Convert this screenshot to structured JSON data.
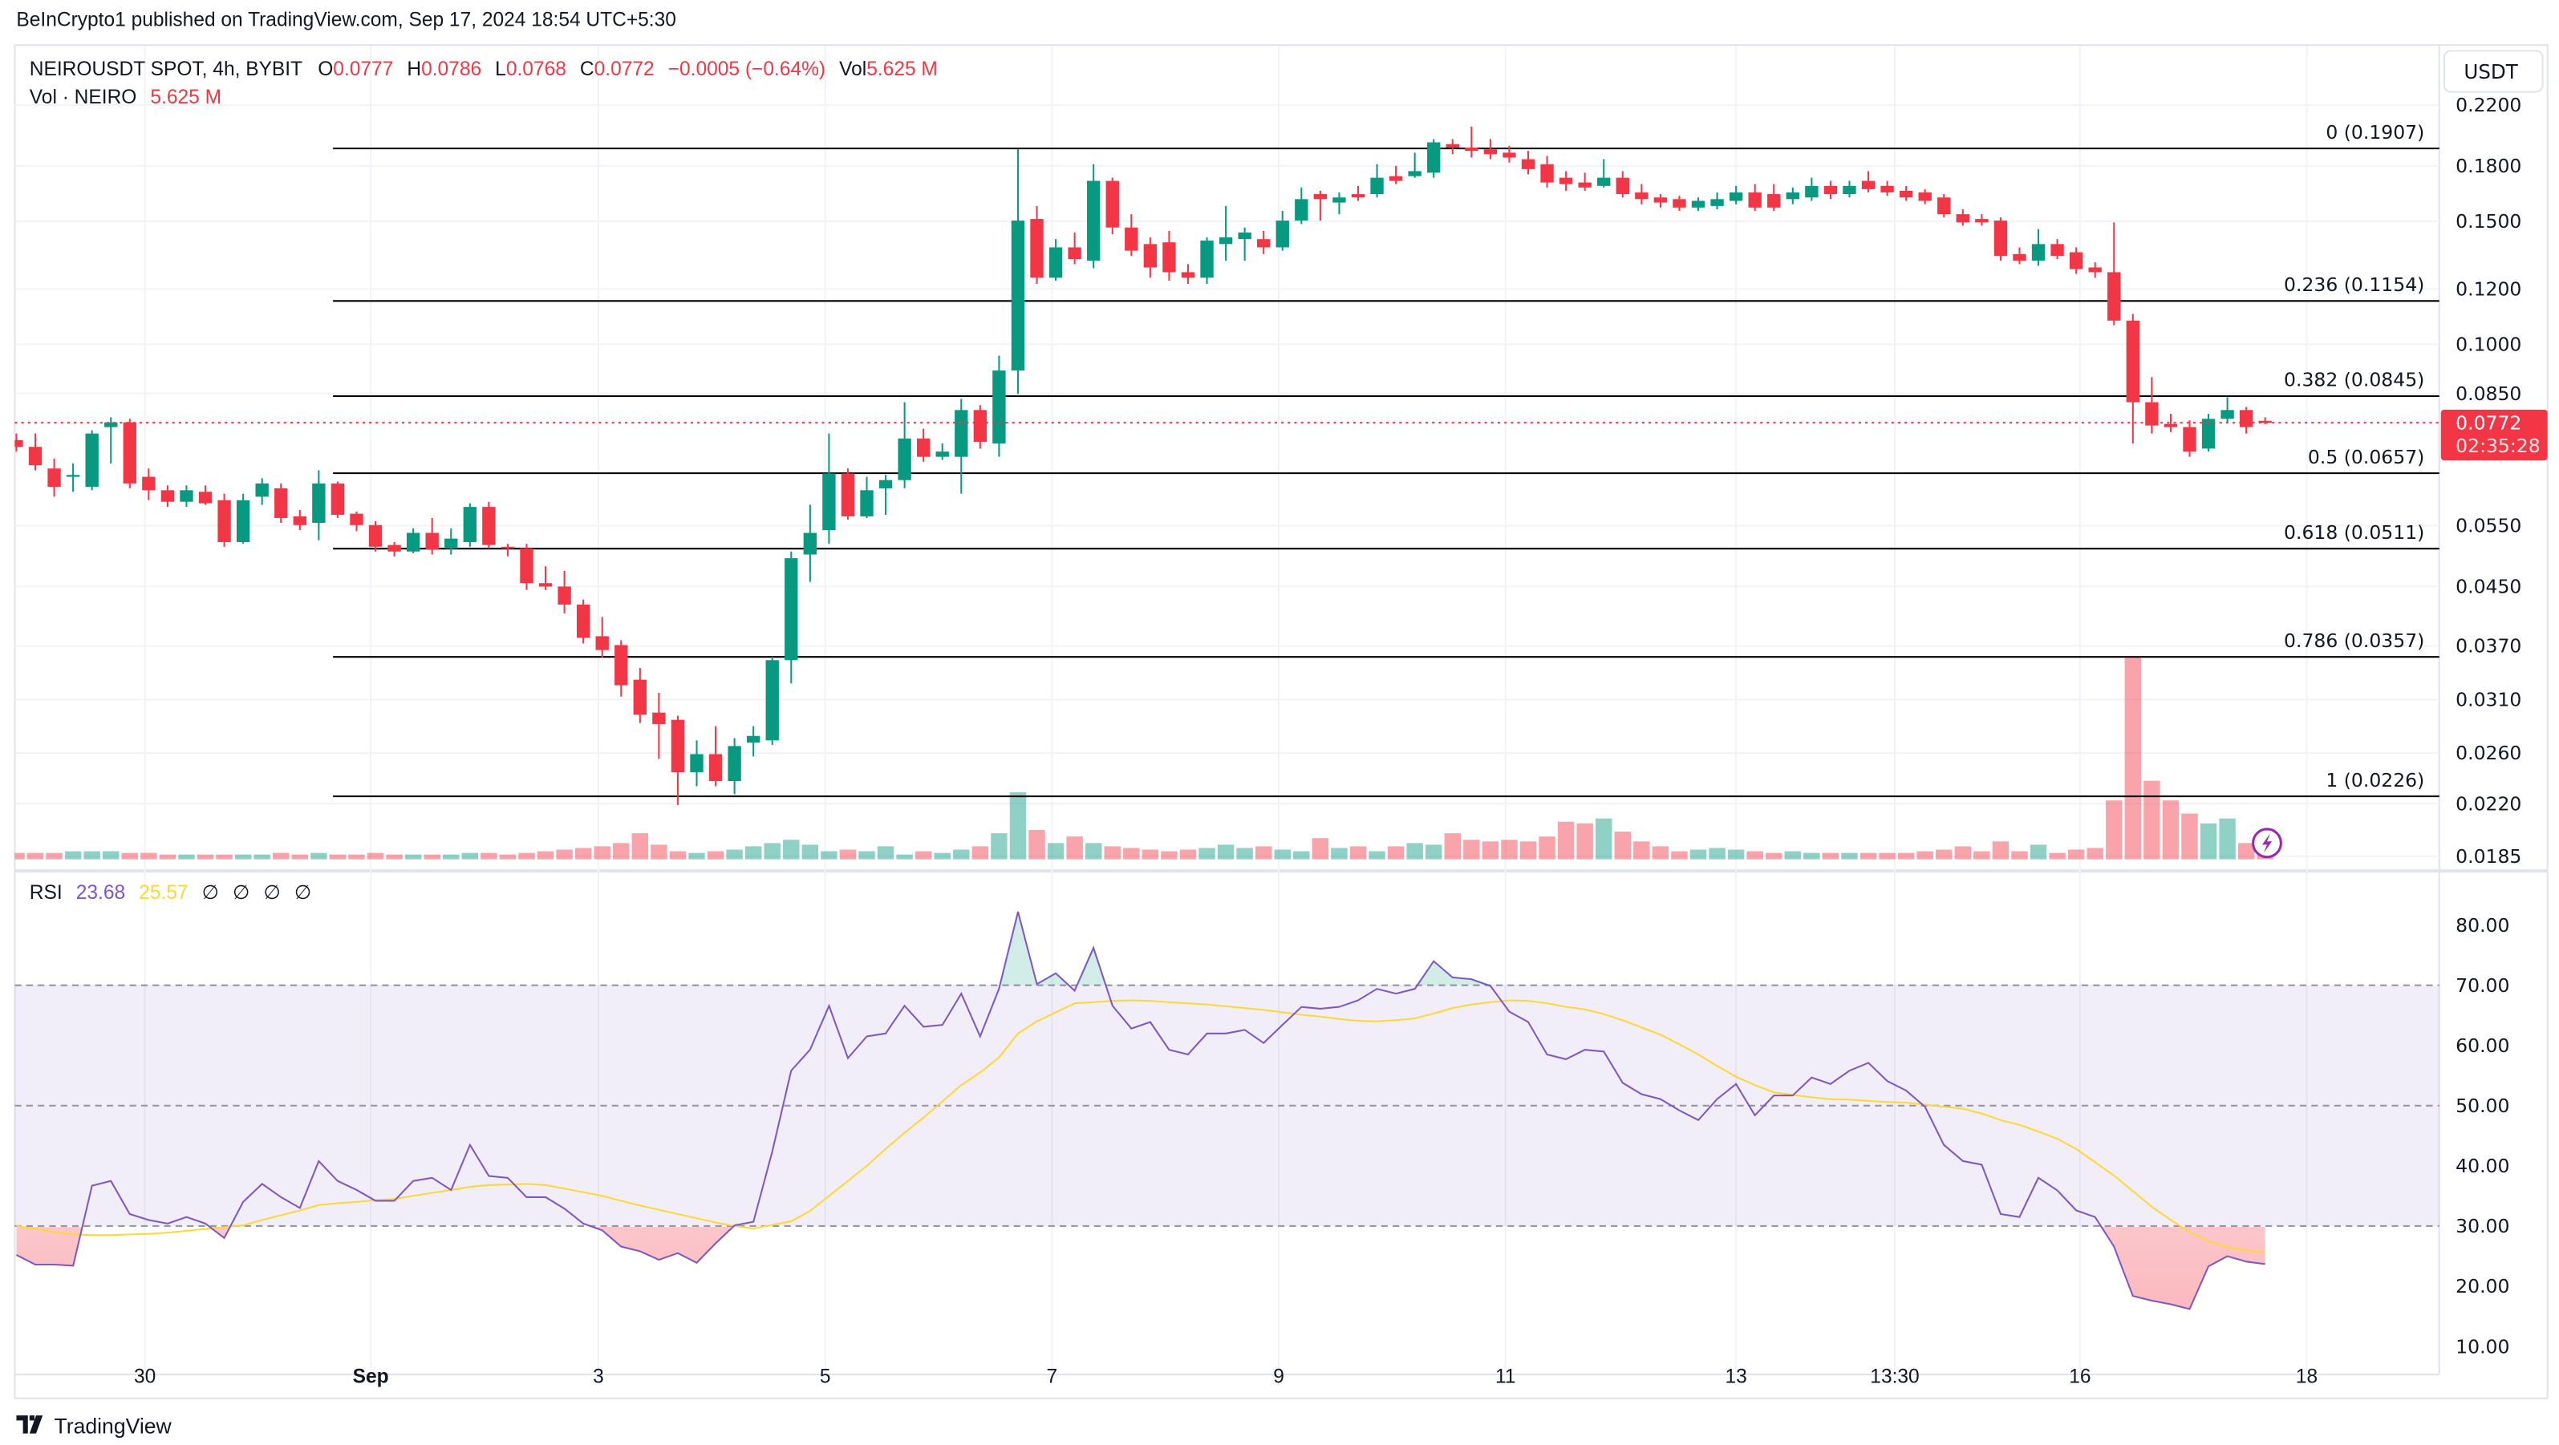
{
  "header": {
    "published": "BeInCrypto1 published on TradingView.com, Sep 17, 2024 18:54 UTC+5:30"
  },
  "legend": {
    "symbol": "NEIROUSDT SPOT, 4h, BYBIT",
    "o_label": "O",
    "o": "0.0777",
    "h_label": "H",
    "h": "0.0786",
    "l_label": "L",
    "l": "0.0768",
    "c_label": "C",
    "c": "0.0772",
    "change": "−0.0005 (−0.64%)",
    "vol_label": "Vol",
    "vol": "5.625 M",
    "vol_indicator_label": "Vol · NEIRO",
    "vol_indicator_value": "5.625 M"
  },
  "currency_button": "USDT",
  "last_price": {
    "price": "0.0772",
    "countdown": "02:35:28"
  },
  "rsi_legend": {
    "label": "RSI",
    "rsi": "23.68",
    "ma": "25.57",
    "hidden": [
      "∅",
      "∅",
      "∅",
      "∅"
    ]
  },
  "watermark": "TradingView",
  "colors": {
    "up": "#089981",
    "down": "#f23645",
    "rsi": "#7e57c2",
    "rsi_ma": "#fdd835",
    "fib": "#000000"
  },
  "chart_data": [
    {
      "type": "candlestick",
      "scale": "log",
      "ylim": [
        0.0185,
        0.22
      ],
      "y_ticks": [
        "0.2200",
        "0.1800",
        "0.1500",
        "0.1200",
        "0.1000",
        "0.0850",
        "0.0550",
        "0.0450",
        "0.0370",
        "0.0310",
        "0.0260",
        "0.0220",
        "0.0185"
      ],
      "x_ticks": [
        "30",
        "Sep",
        "3",
        "5",
        "7",
        "9",
        "11",
        "13",
        "13:30",
        "16",
        "18"
      ],
      "fib_levels": [
        {
          "label": "0 (0.1907)",
          "price": 0.1907
        },
        {
          "label": "0.236 (0.1154)",
          "price": 0.1154
        },
        {
          "label": "0.382 (0.0845)",
          "price": 0.0845
        },
        {
          "label": "0.5 (0.0657)",
          "price": 0.0657
        },
        {
          "label": "0.618 (0.0511)",
          "price": 0.0511
        },
        {
          "label": "0.786 (0.0357)",
          "price": 0.0357
        },
        {
          "label": "1 (0.0226)",
          "price": 0.0226
        }
      ],
      "candles_ohlc": [
        [
          0.0729,
          0.0745,
          0.0702,
          0.0713
        ],
        [
          0.0713,
          0.0745,
          0.066,
          0.0671
        ],
        [
          0.0664,
          0.0686,
          0.0605,
          0.0625
        ],
        [
          0.0646,
          0.0675,
          0.0615,
          0.065
        ],
        [
          0.0625,
          0.0753,
          0.0618,
          0.0745
        ],
        [
          0.0761,
          0.0786,
          0.0675,
          0.0773
        ],
        [
          0.0773,
          0.0782,
          0.0622,
          0.0632
        ],
        [
          0.0646,
          0.0664,
          0.0598,
          0.0618
        ],
        [
          0.0618,
          0.0628,
          0.0585,
          0.0595
        ],
        [
          0.0595,
          0.0628,
          0.0585,
          0.0618
        ],
        [
          0.0615,
          0.0628,
          0.0589,
          0.0592
        ],
        [
          0.0598,
          0.0611,
          0.0513,
          0.0521
        ],
        [
          0.0521,
          0.0611,
          0.0518,
          0.0598
        ],
        [
          0.0605,
          0.0643,
          0.0589,
          0.0632
        ],
        [
          0.0622,
          0.0632,
          0.0555,
          0.0564
        ],
        [
          0.0567,
          0.0579,
          0.0542,
          0.0551
        ],
        [
          0.0555,
          0.066,
          0.0524,
          0.0632
        ],
        [
          0.0632,
          0.0636,
          0.0564,
          0.057
        ],
        [
          0.0572,
          0.0576,
          0.054,
          0.0551
        ],
        [
          0.0551,
          0.0558,
          0.0505,
          0.0513
        ],
        [
          0.0516,
          0.0521,
          0.0497,
          0.0505
        ],
        [
          0.0505,
          0.0545,
          0.0502,
          0.0537
        ],
        [
          0.0537,
          0.0564,
          0.05,
          0.0508
        ],
        [
          0.051,
          0.0545,
          0.05,
          0.0527
        ],
        [
          0.0521,
          0.0592,
          0.0513,
          0.0585
        ],
        [
          0.0585,
          0.0595,
          0.051,
          0.0516
        ],
        [
          0.0513,
          0.0518,
          0.0497,
          0.051
        ],
        [
          0.051,
          0.0518,
          0.0445,
          0.0455
        ],
        [
          0.0455,
          0.0481,
          0.0445,
          0.045
        ],
        [
          0.045,
          0.0474,
          0.0412,
          0.0424
        ],
        [
          0.0424,
          0.0431,
          0.0373,
          0.038
        ],
        [
          0.0382,
          0.0407,
          0.0356,
          0.0365
        ],
        [
          0.0371,
          0.0377,
          0.0313,
          0.0325
        ],
        [
          0.0331,
          0.0344,
          0.0287,
          0.0295
        ],
        [
          0.0297,
          0.0317,
          0.0255,
          0.0286
        ],
        [
          0.029,
          0.0294,
          0.0219,
          0.0244
        ],
        [
          0.0244,
          0.0271,
          0.0233,
          0.0259
        ],
        [
          0.0259,
          0.0284,
          0.0233,
          0.0237
        ],
        [
          0.0237,
          0.0273,
          0.0227,
          0.0266
        ],
        [
          0.0269,
          0.0284,
          0.0257,
          0.0275
        ],
        [
          0.0271,
          0.0357,
          0.0267,
          0.0353
        ],
        [
          0.0353,
          0.0505,
          0.0327,
          0.0494
        ],
        [
          0.05,
          0.0589,
          0.0457,
          0.0537
        ],
        [
          0.0542,
          0.0745,
          0.0518,
          0.0653
        ],
        [
          0.0653,
          0.0664,
          0.0561,
          0.0567
        ],
        [
          0.0567,
          0.0646,
          0.0564,
          0.0618
        ],
        [
          0.0622,
          0.065,
          0.057,
          0.0639
        ],
        [
          0.0639,
          0.0826,
          0.0622,
          0.0733
        ],
        [
          0.0733,
          0.0757,
          0.0679,
          0.069
        ],
        [
          0.069,
          0.0721,
          0.0683,
          0.0702
        ],
        [
          0.069,
          0.0835,
          0.0611,
          0.0805
        ],
        [
          0.0805,
          0.0818,
          0.0709,
          0.0725
        ],
        [
          0.0721,
          0.0963,
          0.069,
          0.0917
        ],
        [
          0.0917,
          0.1901,
          0.0849,
          0.1503
        ],
        [
          0.1511,
          0.1577,
          0.122,
          0.1245
        ],
        [
          0.1245,
          0.1414,
          0.1233,
          0.1376
        ],
        [
          0.1376,
          0.1445,
          0.1302,
          0.1324
        ],
        [
          0.1317,
          0.181,
          0.1285,
          0.1713
        ],
        [
          0.1713,
          0.1731,
          0.1437,
          0.1469
        ],
        [
          0.1469,
          0.1535,
          0.1338,
          0.1361
        ],
        [
          0.1391,
          0.1422,
          0.1245,
          0.1288
        ],
        [
          0.1399,
          0.1453,
          0.1233,
          0.1268
        ],
        [
          0.1268,
          0.1302,
          0.122,
          0.1245
        ],
        [
          0.1245,
          0.1422,
          0.122,
          0.1407
        ],
        [
          0.1391,
          0.1577,
          0.1317,
          0.1422
        ],
        [
          0.1414,
          0.1469,
          0.1317,
          0.1445
        ],
        [
          0.1414,
          0.1453,
          0.1346,
          0.1376
        ],
        [
          0.1376,
          0.1552,
          0.1361,
          0.1503
        ],
        [
          0.1503,
          0.1676,
          0.1486,
          0.1613
        ],
        [
          0.164,
          0.1658,
          0.1503,
          0.1613
        ],
        [
          0.1595,
          0.1649,
          0.1535,
          0.1622
        ],
        [
          0.164,
          0.1685,
          0.1604,
          0.1622
        ],
        [
          0.164,
          0.181,
          0.1622,
          0.1731
        ],
        [
          0.174,
          0.18,
          0.1695,
          0.1713
        ],
        [
          0.174,
          0.188,
          0.1731,
          0.1769
        ],
        [
          0.176,
          0.1966,
          0.1731,
          0.1945
        ],
        [
          0.1934,
          0.1966,
          0.187,
          0.1912
        ],
        [
          0.1912,
          0.2049,
          0.185,
          0.1891
        ],
        [
          0.1901,
          0.1966,
          0.184,
          0.187
        ],
        [
          0.188,
          0.1923,
          0.182,
          0.185
        ],
        [
          0.184,
          0.1891,
          0.175,
          0.1781
        ],
        [
          0.181,
          0.186,
          0.1676,
          0.1704
        ],
        [
          0.1731,
          0.1769,
          0.1658,
          0.1695
        ],
        [
          0.1704,
          0.176,
          0.1658,
          0.1676
        ],
        [
          0.1685,
          0.184,
          0.1676,
          0.1731
        ],
        [
          0.1731,
          0.1769,
          0.1622,
          0.164
        ],
        [
          0.1649,
          0.1695,
          0.1586,
          0.1613
        ],
        [
          0.1622,
          0.164,
          0.1569,
          0.1595
        ],
        [
          0.1613,
          0.1631,
          0.1552,
          0.1569
        ],
        [
          0.1569,
          0.1622,
          0.1552,
          0.1604
        ],
        [
          0.1577,
          0.1649,
          0.156,
          0.1613
        ],
        [
          0.1604,
          0.1685,
          0.1586,
          0.1649
        ],
        [
          0.1649,
          0.1695,
          0.1552,
          0.1569
        ],
        [
          0.164,
          0.1695,
          0.1552,
          0.1569
        ],
        [
          0.1613,
          0.1676,
          0.1586,
          0.1649
        ],
        [
          0.1622,
          0.1731,
          0.1604,
          0.1685
        ],
        [
          0.1685,
          0.1713,
          0.1613,
          0.164
        ],
        [
          0.164,
          0.1713,
          0.1622,
          0.1685
        ],
        [
          0.1713,
          0.1769,
          0.1649,
          0.1667
        ],
        [
          0.1685,
          0.1713,
          0.1631,
          0.1649
        ],
        [
          0.1658,
          0.1685,
          0.1604,
          0.1622
        ],
        [
          0.1649,
          0.1667,
          0.1586,
          0.1604
        ],
        [
          0.1622,
          0.164,
          0.1519,
          0.1535
        ],
        [
          0.1535,
          0.156,
          0.1478,
          0.1494
        ],
        [
          0.1511,
          0.1535,
          0.1478,
          0.1494
        ],
        [
          0.1503,
          0.1519,
          0.1317,
          0.1338
        ],
        [
          0.1346,
          0.1376,
          0.1302,
          0.1317
        ],
        [
          0.1317,
          0.1461,
          0.1295,
          0.1391
        ],
        [
          0.1391,
          0.1414,
          0.1324,
          0.1338
        ],
        [
          0.1354,
          0.1376,
          0.1261,
          0.1281
        ],
        [
          0.1288,
          0.131,
          0.1245,
          0.1268
        ],
        [
          0.1268,
          0.1494,
          0.1064,
          0.1081
        ],
        [
          0.1081,
          0.1105,
          0.0721,
          0.0826
        ],
        [
          0.0826,
          0.0897,
          0.0745,
          0.0765
        ],
        [
          0.0769,
          0.0795,
          0.0749,
          0.0761
        ],
        [
          0.0761,
          0.0778,
          0.069,
          0.0702
        ],
        [
          0.0709,
          0.0795,
          0.0702,
          0.0782
        ],
        [
          0.0782,
          0.084,
          0.0773,
          0.0805
        ],
        [
          0.0805,
          0.0813,
          0.0745,
          0.0761
        ],
        [
          0.0777,
          0.0786,
          0.0768,
          0.0772
        ]
      ],
      "volume_millions": [
        2,
        2,
        2,
        2.5,
        2.5,
        2.5,
        2,
        2,
        1.5,
        1.5,
        1.5,
        1.5,
        1.5,
        1.5,
        2,
        1.5,
        2,
        1.5,
        1.5,
        2,
        1.5,
        1.5,
        1.5,
        1.5,
        2,
        2,
        1.5,
        2,
        2.5,
        3,
        3.5,
        4,
        5,
        8,
        4.5,
        2.5,
        2,
        2.5,
        3,
        4,
        5,
        6,
        4.5,
        2.5,
        3,
        2.5,
        4,
        1.5,
        2.5,
        2,
        3,
        4,
        8,
        20.5,
        9,
        5,
        7,
        5,
        4,
        3.5,
        3,
        2.5,
        3,
        3.5,
        4.5,
        3.5,
        4,
        3,
        2.5,
        6.5,
        3.5,
        4,
        2.5,
        4,
        5,
        4.5,
        8,
        6,
        5.5,
        6,
        5.5,
        7,
        11.5,
        11,
        12.5,
        8.5,
        5.5,
        4,
        2.5,
        3,
        3.5,
        3,
        2.5,
        2,
        2.5,
        2,
        2,
        2,
        2,
        2,
        2,
        2.5,
        3,
        4,
        2.5,
        5.5,
        2.5,
        4.5,
        2,
        3,
        3.5,
        18,
        61.5,
        24,
        18,
        14,
        11,
        12.5,
        5,
        5.625
      ]
    },
    {
      "type": "line",
      "title": "RSI",
      "ylim": [
        10,
        80
      ],
      "y_ticks": [
        "80.00",
        "70.00",
        "60.00",
        "50.00",
        "40.00",
        "30.00",
        "20.00",
        "10.00"
      ],
      "bands": {
        "upper": 70,
        "middle": 50,
        "lower": 30
      },
      "series": [
        {
          "name": "RSI",
          "values": [
            25.2,
            23.6,
            23.6,
            23.4,
            36.7,
            37.5,
            32,
            31,
            30.4,
            31.5,
            30.4,
            28,
            34,
            37,
            34.8,
            33,
            40.8,
            37.5,
            36,
            34.2,
            34.2,
            37.5,
            38,
            36,
            43.5,
            38.3,
            38,
            34.8,
            34.8,
            32.9,
            30.4,
            29.3,
            26.6,
            25.8,
            24.4,
            25.5,
            23.9,
            27.1,
            30.1,
            30.7,
            42.4,
            55.8,
            59.3,
            66.6,
            57.9,
            61.5,
            62,
            66.6,
            63.1,
            63.4,
            68.6,
            61.5,
            69.4,
            82.2,
            70.2,
            72,
            69.1,
            76.2,
            66.6,
            62.8,
            63.9,
            59.3,
            58.5,
            62,
            62,
            62.6,
            60.4,
            63.4,
            66.4,
            66.1,
            66.4,
            67.5,
            69.4,
            68.6,
            69.4,
            74,
            71.3,
            71,
            69.9,
            65.6,
            63.9,
            58.5,
            57.7,
            59.3,
            59,
            53.8,
            51.9,
            51.1,
            49.2,
            47.6,
            51.1,
            53.6,
            48.4,
            51.7,
            51.7,
            54.7,
            53.6,
            55.8,
            57.1,
            54.1,
            52.5,
            49.8,
            43.5,
            40.8,
            40.2,
            32,
            31.5,
            38,
            35.9,
            32.6,
            31.5,
            26.6,
            18.4,
            17.6,
            17,
            16.2,
            23.3,
            25,
            24.1,
            23.68
          ]
        },
        {
          "name": "RSI-based MA",
          "values": [
            30,
            29.5,
            29,
            28.6,
            28.5,
            28.5,
            28.6,
            28.7,
            28.9,
            29.2,
            29.5,
            29.8,
            30.1,
            31,
            31.8,
            32.6,
            33.5,
            33.8,
            34,
            34.3,
            34.5,
            35,
            35.5,
            36,
            36.5,
            36.8,
            36.9,
            37,
            36.8,
            36.2,
            35.6,
            35,
            34.2,
            33.4,
            32.7,
            32,
            31.3,
            30.6,
            30,
            29.6,
            30.2,
            30.8,
            32.5,
            35,
            37.5,
            40,
            42.8,
            45.5,
            48,
            50.7,
            53.4,
            55.5,
            58,
            62,
            64,
            65.5,
            67,
            67.2,
            67.4,
            67.5,
            67.4,
            67.2,
            67,
            66.8,
            66.5,
            66.2,
            65.9,
            65.5,
            65.1,
            64.8,
            64.4,
            64.1,
            64,
            64.2,
            64.5,
            65.3,
            66.2,
            66.8,
            67.2,
            67.5,
            67.4,
            67,
            66.4,
            66,
            65.2,
            64.2,
            63,
            61.8,
            60.2,
            58.5,
            56.6,
            54.8,
            53.4,
            52.2,
            51.8,
            51.4,
            51.1,
            51,
            50.8,
            50.6,
            50.5,
            50.2,
            49.8,
            49.5,
            48.7,
            47.6,
            46.8,
            45.7,
            44.5,
            42.8,
            40.6,
            38.4,
            35.8,
            33.2,
            31,
            29,
            27.5,
            26.5,
            26,
            25.57
          ]
        }
      ]
    }
  ]
}
